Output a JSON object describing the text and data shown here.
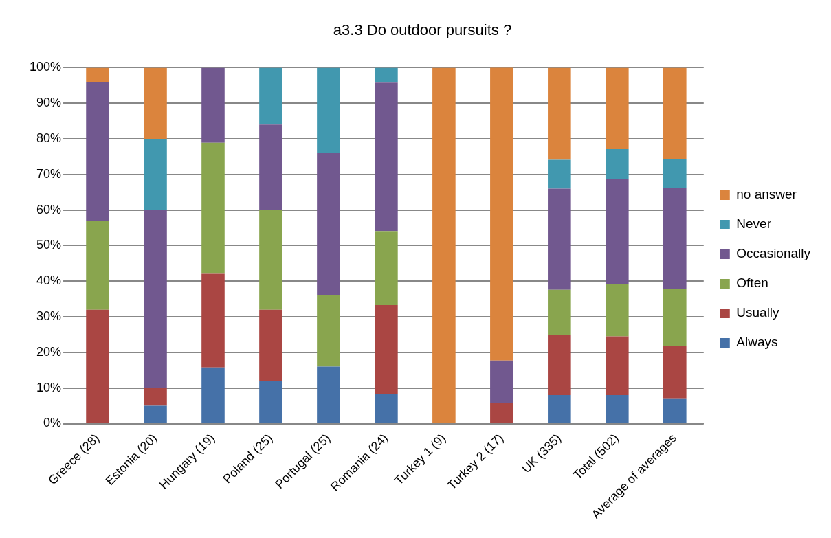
{
  "chart_data": {
    "type": "bar",
    "title": "a3.3 Do outdoor pursuits ?",
    "stacked": true,
    "categories": [
      "Greece (28)",
      "Estonia (20)",
      "Hungary (19)",
      "Poland (25)",
      "Portugal (25)",
      "Romania (24)",
      "Turkey 1 (9)",
      "Turkey 2 (17)",
      "UK (335)",
      "Total (502)",
      "Average of averages"
    ],
    "series": [
      {
        "name": "Always",
        "color": "#4571a8",
        "values": [
          0,
          5,
          15.8,
          12,
          16,
          8.3,
          0,
          0,
          8,
          8,
          7.1
        ]
      },
      {
        "name": "Usually",
        "color": "#aa4643",
        "values": [
          32,
          5,
          26.3,
          20,
          0,
          25,
          0,
          5.9,
          16.8,
          16.5,
          14.7
        ]
      },
      {
        "name": "Often",
        "color": "#89a54e",
        "values": [
          25,
          0,
          36.8,
          28,
          20,
          20.8,
          0,
          0,
          12.8,
          14.8,
          16
        ]
      },
      {
        "name": "Occasionally",
        "color": "#71588f",
        "values": [
          39,
          50,
          21.1,
          24,
          40,
          41.7,
          0,
          11.8,
          28.4,
          29.5,
          28.4
        ]
      },
      {
        "name": "Never",
        "color": "#4198af",
        "values": [
          0,
          20,
          0,
          16,
          24,
          4.2,
          0,
          0,
          8.1,
          8.3,
          8
        ]
      },
      {
        "name": "no answer",
        "color": "#db843d",
        "values": [
          4,
          20,
          0,
          0,
          0,
          0,
          100,
          82.4,
          25.9,
          22.9,
          25.8
        ]
      }
    ],
    "ylim": [
      0,
      100
    ],
    "yticks": [
      {
        "value": 0,
        "label": "0%"
      },
      {
        "value": 10,
        "label": "10%"
      },
      {
        "value": 20,
        "label": "20%"
      },
      {
        "value": 30,
        "label": "30%"
      },
      {
        "value": 40,
        "label": "40%"
      },
      {
        "value": 50,
        "label": "50%"
      },
      {
        "value": 60,
        "label": "60%"
      },
      {
        "value": 70,
        "label": "70%"
      },
      {
        "value": 80,
        "label": "80%"
      },
      {
        "value": 90,
        "label": "90%"
      },
      {
        "value": 100,
        "label": "100%"
      }
    ],
    "grid": "y",
    "legend": "right"
  }
}
